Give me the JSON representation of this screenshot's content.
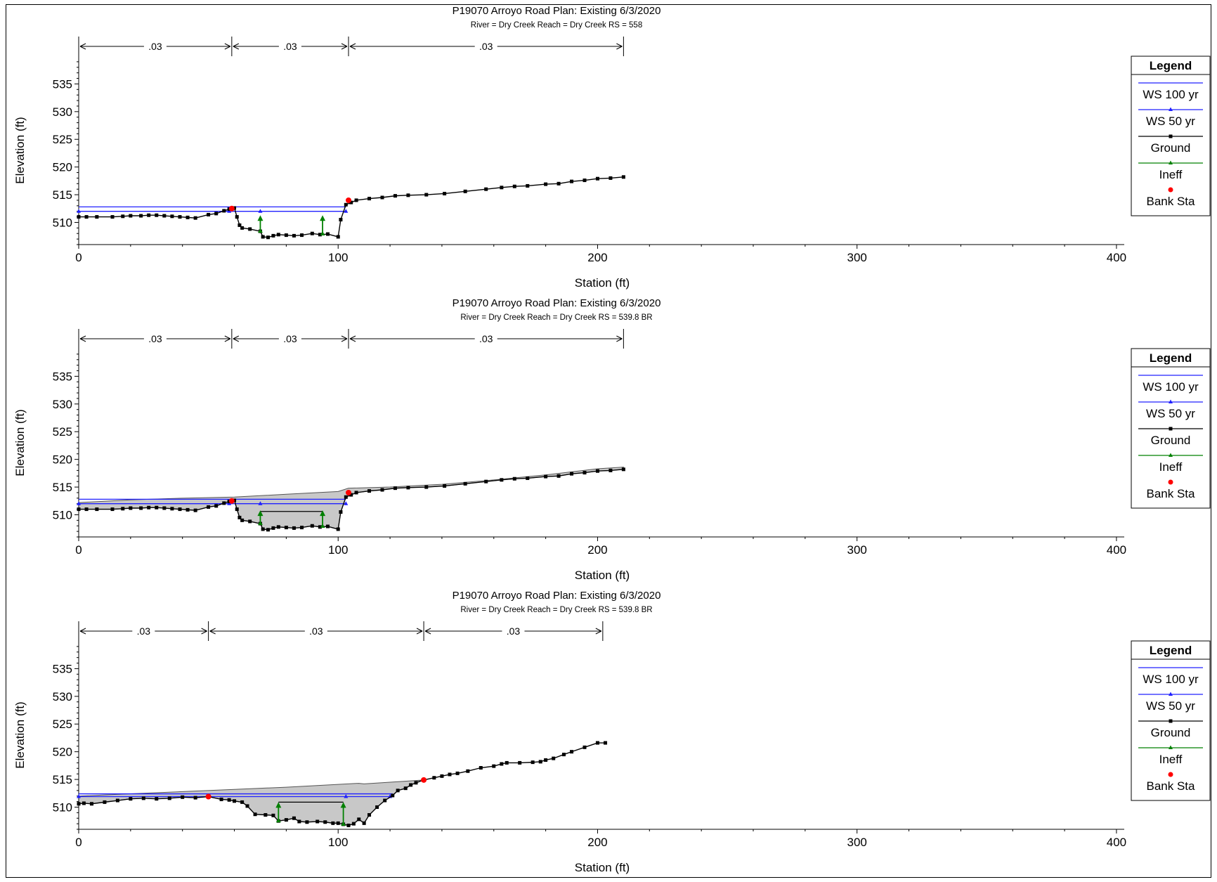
{
  "legend_title": "Legend",
  "legend_items": [
    "WS 100 yr",
    "WS 50 yr",
    "Ground",
    "Ineff",
    "Bank Sta"
  ],
  "colors": {
    "ws100": "#2020ff",
    "ws50": "#2020ff",
    "ground": "#000000",
    "ineff": "#008000",
    "bank": "#ff0000",
    "fill": "#c8c8c8"
  },
  "chart_data": [
    {
      "type": "line",
      "title": "P19070 Arroyo Road       Plan: Existing    6/3/2020",
      "subtitle": "River = Dry Creek   Reach = Dry Creek      RS = 558",
      "xlabel": "Station (ft)",
      "ylabel": "Elevation (ft)",
      "xlim": [
        0,
        403
      ],
      "ylim": [
        506,
        540
      ],
      "x_ticks": [
        0,
        100,
        200,
        300,
        400
      ],
      "y_ticks": [
        510,
        515,
        520,
        525,
        530,
        535
      ],
      "manning": {
        "breaks": [
          0,
          59,
          104,
          210
        ],
        "labels": [
          ".03",
          ".03",
          ".03"
        ]
      },
      "ground": [
        [
          0,
          511
        ],
        [
          3,
          511
        ],
        [
          7,
          511
        ],
        [
          13,
          511
        ],
        [
          17,
          511.1
        ],
        [
          20,
          511.2
        ],
        [
          24,
          511.2
        ],
        [
          27,
          511.3
        ],
        [
          30,
          511.3
        ],
        [
          33,
          511.2
        ],
        [
          36,
          511.1
        ],
        [
          39,
          511
        ],
        [
          42,
          510.9
        ],
        [
          45,
          510.8
        ],
        [
          50,
          511.4
        ],
        [
          53,
          511.6
        ],
        [
          56,
          512.1
        ],
        [
          58,
          512.4
        ],
        [
          60,
          512.6
        ],
        [
          61,
          511
        ],
        [
          62,
          509.5
        ],
        [
          63,
          509
        ],
        [
          66,
          508.8
        ],
        [
          70,
          508.4
        ],
        [
          71,
          507.4
        ],
        [
          73,
          507.3
        ],
        [
          75,
          507.6
        ],
        [
          77,
          507.8
        ],
        [
          80,
          507.7
        ],
        [
          83,
          507.6
        ],
        [
          86,
          507.7
        ],
        [
          90,
          508
        ],
        [
          93,
          507.8
        ],
        [
          96,
          507.9
        ],
        [
          100,
          507.4
        ],
        [
          101,
          510.5
        ],
        [
          103,
          513.2
        ],
        [
          105,
          513.6
        ],
        [
          107,
          514
        ],
        [
          112,
          514.3
        ],
        [
          117,
          514.5
        ],
        [
          122,
          514.8
        ],
        [
          127,
          514.9
        ],
        [
          134,
          515
        ],
        [
          141,
          515.2
        ],
        [
          149,
          515.6
        ],
        [
          157,
          516
        ],
        [
          163,
          516.3
        ],
        [
          168,
          516.5
        ],
        [
          173,
          516.6
        ],
        [
          180,
          516.9
        ],
        [
          185,
          517
        ],
        [
          190,
          517.4
        ],
        [
          195,
          517.6
        ],
        [
          200,
          517.9
        ],
        [
          205,
          518
        ],
        [
          210,
          518.2
        ]
      ],
      "ws100": {
        "elev": 512.8,
        "x0": 0,
        "x1": 103
      },
      "ws50": {
        "elev": 512.0,
        "x0": 0,
        "x1": 103,
        "markers": [
          0,
          58,
          70,
          103
        ]
      },
      "ineff": [
        [
          70,
          508.4,
          511.3
        ],
        [
          94,
          507.9,
          511.3
        ]
      ],
      "bank": [
        [
          59,
          512.5
        ],
        [
          104,
          514.0
        ]
      ],
      "deck": null
    },
    {
      "type": "line",
      "title": "P19070 Arroyo Road       Plan: Existing    6/3/2020",
      "subtitle": "River = Dry Creek   Reach = Dry Creek      RS = 539.8    BR",
      "xlabel": "Station (ft)",
      "ylabel": "Elevation (ft)",
      "xlim": [
        0,
        403
      ],
      "ylim": [
        506,
        540
      ],
      "x_ticks": [
        0,
        100,
        200,
        300,
        400
      ],
      "y_ticks": [
        510,
        515,
        520,
        525,
        530,
        535
      ],
      "manning": {
        "breaks": [
          0,
          59,
          104,
          210
        ],
        "labels": [
          ".03",
          ".03",
          ".03"
        ]
      },
      "ground": [
        [
          0,
          511
        ],
        [
          3,
          511
        ],
        [
          7,
          511
        ],
        [
          13,
          511
        ],
        [
          17,
          511.1
        ],
        [
          20,
          511.2
        ],
        [
          24,
          511.2
        ],
        [
          27,
          511.3
        ],
        [
          30,
          511.3
        ],
        [
          33,
          511.2
        ],
        [
          36,
          511.1
        ],
        [
          39,
          511
        ],
        [
          42,
          510.9
        ],
        [
          45,
          510.8
        ],
        [
          50,
          511.4
        ],
        [
          53,
          511.6
        ],
        [
          56,
          512.1
        ],
        [
          58,
          512.4
        ],
        [
          60,
          512.6
        ],
        [
          61,
          511
        ],
        [
          62,
          509.5
        ],
        [
          63,
          509
        ],
        [
          66,
          508.8
        ],
        [
          70,
          508.4
        ],
        [
          71,
          507.4
        ],
        [
          73,
          507.3
        ],
        [
          75,
          507.6
        ],
        [
          77,
          507.8
        ],
        [
          80,
          507.7
        ],
        [
          83,
          507.6
        ],
        [
          86,
          507.7
        ],
        [
          90,
          508
        ],
        [
          93,
          507.8
        ],
        [
          96,
          507.9
        ],
        [
          100,
          507.4
        ],
        [
          101,
          510.5
        ],
        [
          103,
          513.2
        ],
        [
          105,
          513.6
        ],
        [
          107,
          514
        ],
        [
          112,
          514.3
        ],
        [
          117,
          514.5
        ],
        [
          122,
          514.8
        ],
        [
          127,
          514.9
        ],
        [
          134,
          515
        ],
        [
          141,
          515.2
        ],
        [
          149,
          515.6
        ],
        [
          157,
          516
        ],
        [
          163,
          516.3
        ],
        [
          168,
          516.5
        ],
        [
          173,
          516.6
        ],
        [
          180,
          516.9
        ],
        [
          185,
          517
        ],
        [
          190,
          517.4
        ],
        [
          195,
          517.6
        ],
        [
          200,
          517.9
        ],
        [
          205,
          518
        ],
        [
          210,
          518.2
        ]
      ],
      "ws100": {
        "elev": 512.8,
        "x0": 0,
        "x1": 103
      },
      "ws50": {
        "elev": 512.0,
        "x0": 0,
        "x1": 103,
        "markers": [
          0,
          58,
          70,
          103
        ]
      },
      "ineff": [
        [
          70,
          508.4,
          510.8
        ],
        [
          94,
          507.9,
          510.8
        ]
      ],
      "bank": [
        [
          59,
          512.5
        ],
        [
          104,
          514.0
        ]
      ],
      "deck": {
        "top": [
          [
            0,
            512.2
          ],
          [
            20,
            512.7
          ],
          [
            40,
            513
          ],
          [
            60,
            513.2
          ],
          [
            80,
            513.7
          ],
          [
            100,
            514.2
          ],
          [
            104,
            514.8
          ],
          [
            120,
            515
          ],
          [
            140,
            515.5
          ],
          [
            160,
            516.3
          ],
          [
            180,
            517.2
          ],
          [
            200,
            518.3
          ],
          [
            210,
            518.6
          ]
        ],
        "low_chord": [
          70,
          94,
          510.6
        ]
      }
    },
    {
      "type": "line",
      "title": "P19070 Arroyo Road       Plan: Existing    6/3/2020",
      "subtitle": "River = Dry Creek   Reach = Dry Creek      RS = 539.8    BR",
      "xlabel": "Station (ft)",
      "ylabel": "Elevation (ft)",
      "xlim": [
        0,
        403
      ],
      "ylim": [
        506,
        540
      ],
      "x_ticks": [
        0,
        100,
        200,
        300,
        400
      ],
      "y_ticks": [
        510,
        515,
        520,
        525,
        530,
        535
      ],
      "manning": {
        "breaks": [
          0,
          50,
          133,
          202
        ],
        "labels": [
          ".03",
          ".03",
          ".03"
        ]
      },
      "ground": [
        [
          0,
          510.6
        ],
        [
          2,
          510.7
        ],
        [
          5,
          510.6
        ],
        [
          10,
          510.9
        ],
        [
          15,
          511.2
        ],
        [
          20,
          511.5
        ],
        [
          25,
          511.6
        ],
        [
          30,
          511.5
        ],
        [
          35,
          511.6
        ],
        [
          40,
          511.8
        ],
        [
          45,
          511.7
        ],
        [
          50,
          511.9
        ],
        [
          55,
          511.4
        ],
        [
          58,
          511.3
        ],
        [
          60,
          511.1
        ],
        [
          63,
          510.9
        ],
        [
          65,
          510.2
        ],
        [
          68,
          508.7
        ],
        [
          72,
          508.6
        ],
        [
          75,
          508.5
        ],
        [
          77,
          507.5
        ],
        [
          80,
          507.7
        ],
        [
          83,
          508
        ],
        [
          85,
          507.4
        ],
        [
          88,
          507.3
        ],
        [
          92,
          507.4
        ],
        [
          95,
          507.3
        ],
        [
          98,
          507.1
        ],
        [
          100,
          507.1
        ],
        [
          102,
          506.9
        ],
        [
          104,
          506.7
        ],
        [
          106,
          507
        ],
        [
          108,
          507.8
        ],
        [
          110,
          507.1
        ],
        [
          112,
          508.6
        ],
        [
          115,
          510
        ],
        [
          118,
          511.2
        ],
        [
          121,
          512.1
        ],
        [
          123,
          513
        ],
        [
          126,
          513.4
        ],
        [
          128,
          514
        ],
        [
          130,
          514.4
        ],
        [
          133,
          514.9
        ],
        [
          137,
          515.3
        ],
        [
          140,
          515.6
        ],
        [
          143,
          515.9
        ],
        [
          146,
          516.1
        ],
        [
          150,
          516.5
        ],
        [
          155,
          517.1
        ],
        [
          160,
          517.4
        ],
        [
          163,
          517.8
        ],
        [
          165,
          518
        ],
        [
          170,
          518
        ],
        [
          175,
          518.1
        ],
        [
          178,
          518.2
        ],
        [
          180,
          518.5
        ],
        [
          183,
          518.8
        ],
        [
          187,
          519.5
        ],
        [
          190,
          520
        ],
        [
          195,
          520.8
        ],
        [
          200,
          521.6
        ],
        [
          203,
          521.6
        ]
      ],
      "ws100": {
        "elev": 512.4,
        "x0": 0,
        "x1": 121
      },
      "ws50": {
        "elev": 511.9,
        "x0": 0,
        "x1": 121,
        "markers": [
          0,
          50,
          103,
          120
        ]
      },
      "ineff": [
        [
          77,
          507.5,
          510.9
        ],
        [
          102,
          506.9,
          510.9
        ]
      ],
      "bank": [
        [
          50,
          511.9
        ],
        [
          133,
          514.9
        ]
      ],
      "deck": {
        "top": [
          [
            0,
            512
          ],
          [
            20,
            512.4
          ],
          [
            40,
            512.8
          ],
          [
            60,
            513.2
          ],
          [
            80,
            513.6
          ],
          [
            100,
            514.1
          ],
          [
            108,
            514.3
          ],
          [
            110,
            514.2
          ],
          [
            120,
            514.5
          ],
          [
            133,
            514.9
          ]
        ],
        "low_chord": [
          77,
          102,
          510.9
        ]
      }
    }
  ]
}
